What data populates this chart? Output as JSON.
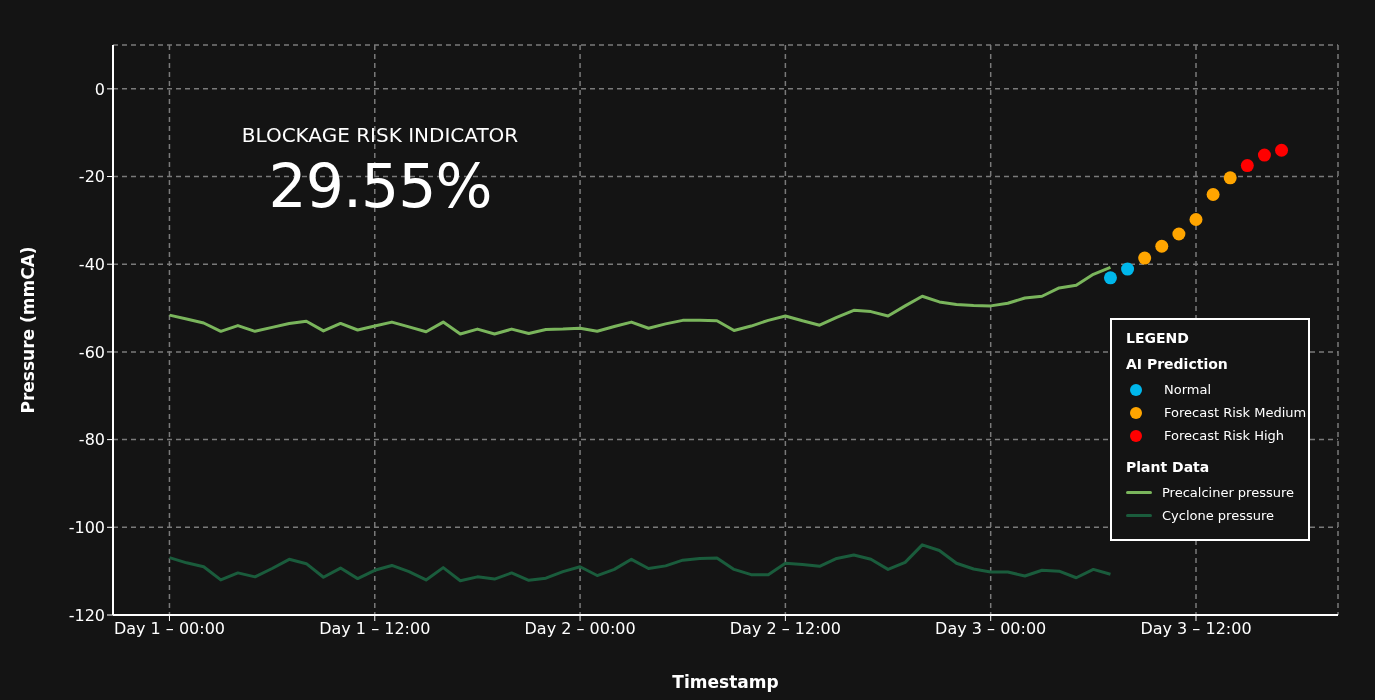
{
  "chart_data": {
    "type": "line",
    "title": "BLOCKAGE RISK INDICATOR",
    "subtitle": "29.55%",
    "xlabel": "Timestamp",
    "ylabel": "Pressure (mmCA)",
    "legend_title": "LEGEND",
    "annotations": [
      "AI Prediction",
      "Plant Data"
    ],
    "categories": [
      "Day 1 – 00:00",
      null,
      null,
      null,
      null,
      null,
      null,
      null,
      null,
      null,
      null,
      null,
      "Day 1 – 12:00",
      null,
      null,
      null,
      null,
      null,
      null,
      null,
      null,
      null,
      null,
      null,
      "Day 2 – 00:00",
      null,
      null,
      null,
      null,
      null,
      null,
      null,
      null,
      null,
      null,
      null,
      "Day 2 – 12:00",
      null,
      null,
      null,
      null,
      null,
      null,
      null,
      null,
      null,
      null,
      null,
      "Day 3 – 00:00",
      null,
      null,
      null,
      null,
      null,
      null,
      null,
      null,
      null,
      null,
      null,
      "Day 3 – 12:00",
      null,
      null,
      null,
      null,
      null
    ],
    "ylim": [
      -120,
      10
    ],
    "yticks": [
      -120,
      -100,
      -80,
      -60,
      -40,
      -20,
      0
    ],
    "grid": true,
    "legend": "right",
    "series": [
      {
        "name": "Normal",
        "type": "scatter",
        "marker": "circle",
        "color": "#00b7eb",
        "values": [
          null,
          null,
          null,
          null,
          null,
          null,
          null,
          null,
          null,
          null,
          null,
          null,
          null,
          null,
          null,
          null,
          null,
          null,
          null,
          null,
          null,
          null,
          null,
          null,
          null,
          null,
          null,
          null,
          null,
          null,
          null,
          null,
          null,
          null,
          null,
          null,
          null,
          null,
          null,
          null,
          null,
          null,
          null,
          null,
          null,
          null,
          null,
          null,
          null,
          null,
          null,
          null,
          null,
          null,
          null,
          -43.1,
          -41.1,
          null,
          null,
          null,
          null,
          null,
          null,
          null,
          null,
          null
        ]
      },
      {
        "name": "Forecast Risk Medium",
        "type": "scatter",
        "marker": "circle",
        "color": "#ffa500",
        "values": [
          null,
          null,
          null,
          null,
          null,
          null,
          null,
          null,
          null,
          null,
          null,
          null,
          null,
          null,
          null,
          null,
          null,
          null,
          null,
          null,
          null,
          null,
          null,
          null,
          null,
          null,
          null,
          null,
          null,
          null,
          null,
          null,
          null,
          null,
          null,
          null,
          null,
          null,
          null,
          null,
          null,
          null,
          null,
          null,
          null,
          null,
          null,
          null,
          null,
          null,
          null,
          null,
          null,
          null,
          null,
          null,
          null,
          -38.6,
          -35.9,
          -33.1,
          -29.8,
          -24.1,
          -20.3,
          null,
          null,
          null
        ]
      },
      {
        "name": "Forecast Risk High",
        "type": "scatter",
        "marker": "circle",
        "color": "#ff0000",
        "values": [
          null,
          null,
          null,
          null,
          null,
          null,
          null,
          null,
          null,
          null,
          null,
          null,
          null,
          null,
          null,
          null,
          null,
          null,
          null,
          null,
          null,
          null,
          null,
          null,
          null,
          null,
          null,
          null,
          null,
          null,
          null,
          null,
          null,
          null,
          null,
          null,
          null,
          null,
          null,
          null,
          null,
          null,
          null,
          null,
          null,
          null,
          null,
          null,
          null,
          null,
          null,
          null,
          null,
          null,
          null,
          null,
          null,
          null,
          null,
          null,
          null,
          null,
          null,
          -17.5,
          -15.1,
          -14.0
        ]
      },
      {
        "name": "Precalciner pressure",
        "color": "#7ab55c",
        "values": [
          -51.6,
          -52.5,
          -53.4,
          -55.3,
          -54.0,
          -55.3,
          -54.4,
          -53.5,
          -53.0,
          -55.2,
          -53.5,
          -55.0,
          -54.1,
          -53.2,
          -54.3,
          -55.4,
          -53.2,
          -55.9,
          -54.8,
          -55.9,
          -54.8,
          -55.8,
          -54.9,
          -54.8,
          -54.6,
          -55.3,
          -54.2,
          -53.2,
          -54.6,
          -53.6,
          -52.8,
          -52.8,
          -52.9,
          -55.1,
          -54.1,
          -52.8,
          -51.8,
          -52.9,
          -53.9,
          -52.1,
          -50.5,
          -50.8,
          -51.8,
          -49.5,
          -47.3,
          -48.6,
          -49.2,
          -49.4,
          -49.5,
          -48.9,
          -47.7,
          -47.3,
          -45.4,
          -44.8,
          -42.3,
          -40.7,
          null,
          null,
          null,
          null,
          null,
          null,
          null,
          null,
          null,
          null
        ]
      },
      {
        "name": "Cyclone pressure",
        "color": "#1a5c3c",
        "values": [
          -106.9,
          -108.1,
          -109.0,
          -112.0,
          -110.4,
          -111.3,
          -109.4,
          -107.3,
          -108.3,
          -111.4,
          -109.3,
          -111.7,
          -109.8,
          -108.7,
          -110.1,
          -112.0,
          -109.2,
          -112.2,
          -111.3,
          -111.8,
          -110.4,
          -112.1,
          -111.6,
          -110.1,
          -109.0,
          -111.0,
          -109.6,
          -107.3,
          -109.4,
          -108.8,
          -107.5,
          -107.1,
          -107.0,
          -109.6,
          -110.8,
          -110.8,
          -108.2,
          -108.5,
          -108.9,
          -107.1,
          -106.3,
          -107.3,
          -109.6,
          -108.0,
          -104.0,
          -105.3,
          -108.2,
          -109.5,
          -110.2,
          -110.2,
          -111.1,
          -109.8,
          -110.0,
          -111.5,
          -109.6,
          -110.7,
          null,
          null,
          null,
          null,
          null,
          null,
          null,
          null,
          null,
          null
        ]
      }
    ]
  }
}
